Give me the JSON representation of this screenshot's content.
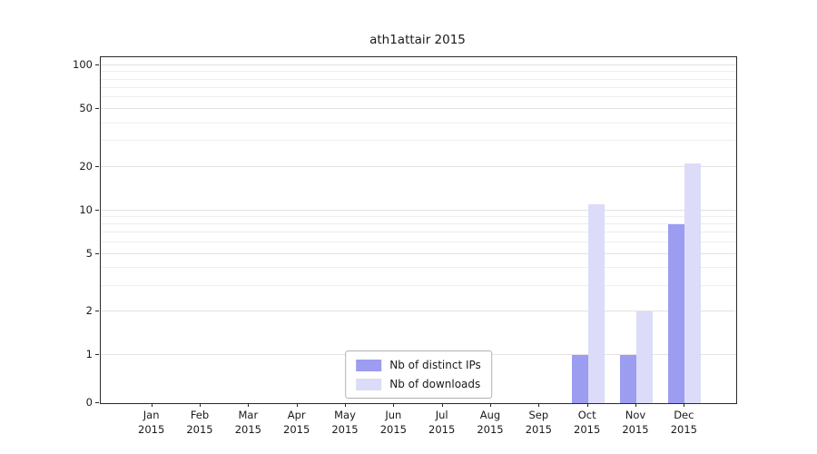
{
  "title": "ath1attair 2015",
  "chart_data": {
    "type": "bar",
    "title": "ath1attair 2015",
    "categories": [
      "Jan",
      "Feb",
      "Mar",
      "Apr",
      "May",
      "Jun",
      "Jul",
      "Aug",
      "Sep",
      "Oct",
      "Nov",
      "Dec"
    ],
    "year": "2015",
    "series": [
      {
        "name": "Nb of distinct IPs",
        "color": "#9c9cf0",
        "values": [
          0,
          0,
          0,
          0,
          0,
          0,
          0,
          0,
          0,
          1,
          1,
          8
        ]
      },
      {
        "name": "Nb of downloads",
        "color": "#dcdcf8",
        "values": [
          0,
          0,
          0,
          0,
          0,
          0,
          0,
          0,
          0,
          11,
          2,
          21
        ]
      }
    ],
    "yticks": [
      0,
      1,
      2,
      5,
      10,
      20,
      50,
      100
    ],
    "ylim": [
      0,
      100
    ],
    "yscale": "symlog",
    "grid": true,
    "legend_position": "lower center",
    "xlabel": "",
    "ylabel": ""
  }
}
